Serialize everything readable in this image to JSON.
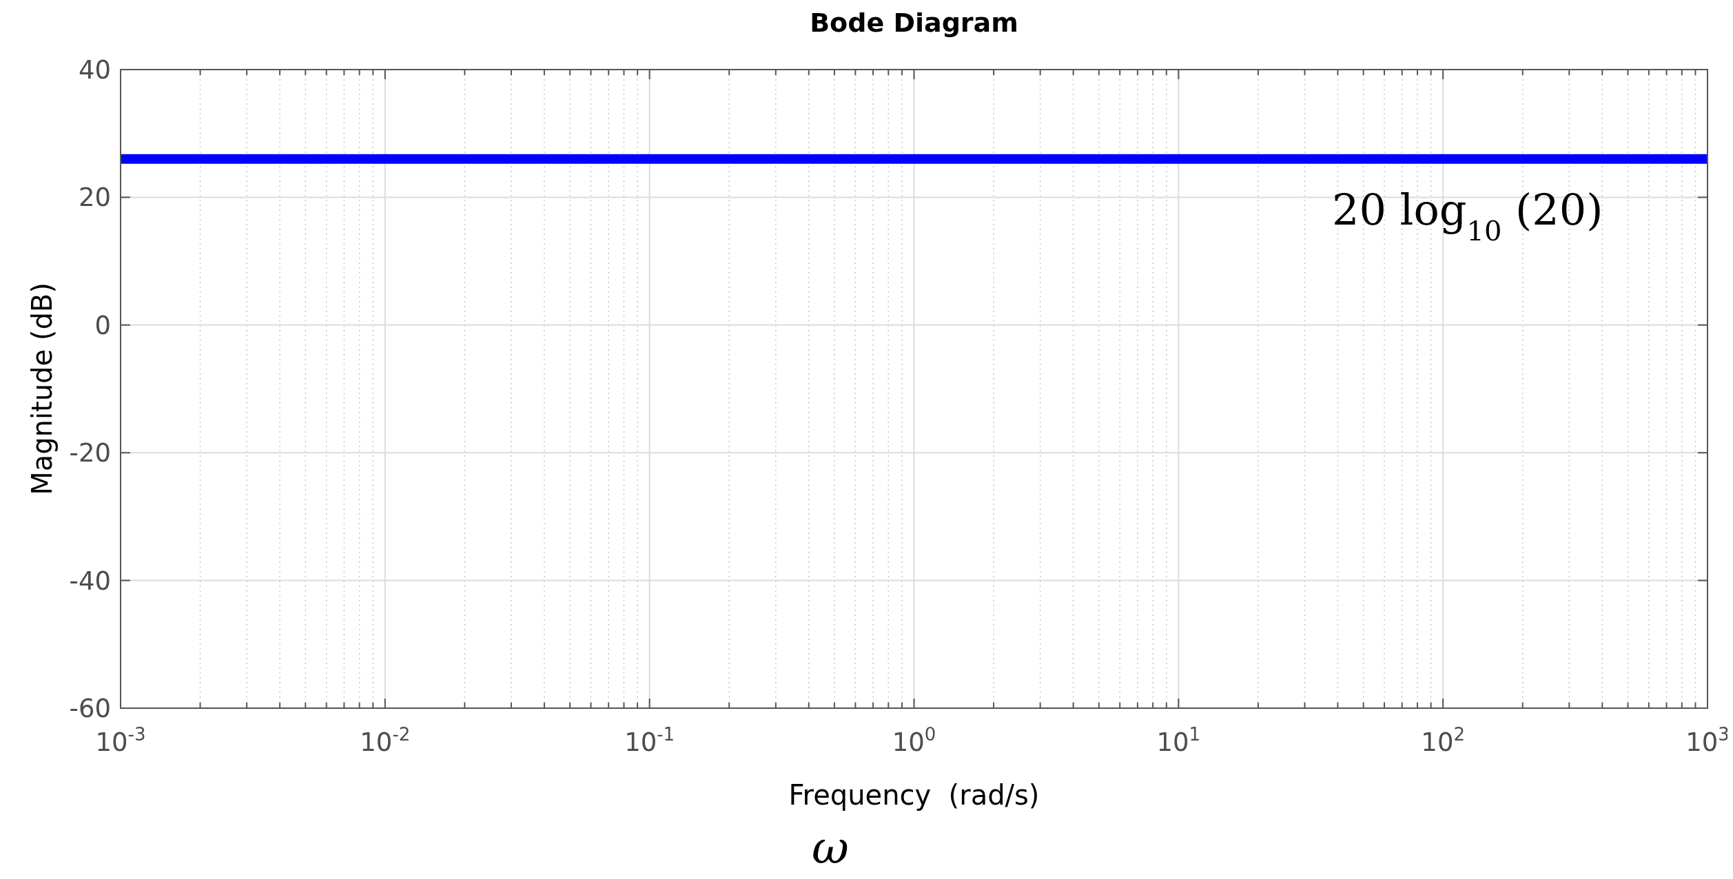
{
  "chart_data": {
    "type": "line",
    "title": "Bode Diagram",
    "xlabel": "Frequency  (rad/s)",
    "ylabel": "Magnitude (dB)",
    "log": "x",
    "grid": true,
    "marker": "none",
    "line_style": "solid",
    "xlim": [
      0.001,
      1000
    ],
    "ylim": [
      -60,
      40
    ],
    "xticks": [
      {
        "value": 0.001,
        "label": "10$^{-3}$"
      },
      {
        "value": 0.01,
        "label": "10$^{-2}$"
      },
      {
        "value": 0.1,
        "label": "10$^{-1}$"
      },
      {
        "value": 1,
        "label": "10$^{0}$"
      },
      {
        "value": 10,
        "label": "10$^{1}$"
      },
      {
        "value": 100,
        "label": "10$^{2}$"
      },
      {
        "value": 1000,
        "label": "10$^{3}$"
      }
    ],
    "yticks": [
      -60,
      -40,
      -20,
      0,
      20,
      40
    ],
    "series": [
      {
        "color": "#0000ff",
        "x": [
          0.001,
          1000
        ],
        "values": [
          26,
          26
        ]
      }
    ],
    "annotations": [
      "20 log$_{10}$ (20)",
      "ω"
    ]
  }
}
